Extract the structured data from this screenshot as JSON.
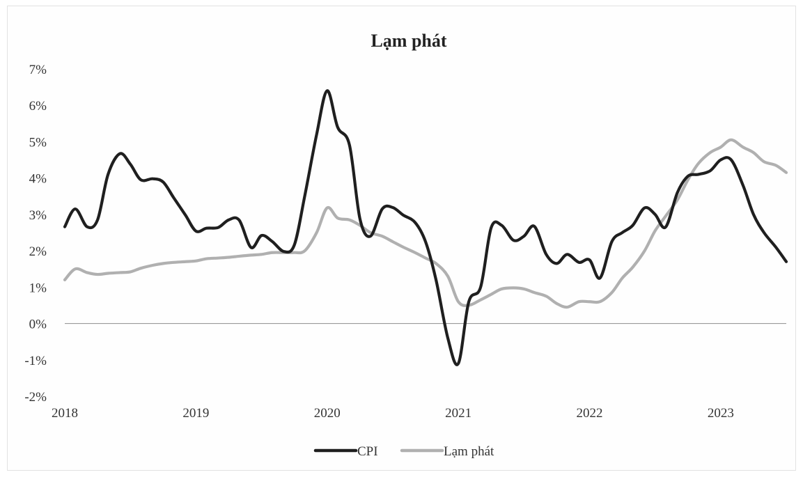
{
  "chart_data": {
    "type": "line",
    "title": "Lạm phát",
    "xlabel": "",
    "ylabel": "",
    "ylim": [
      -0.02,
      0.07
    ],
    "yticks": [
      "7%",
      "6%",
      "5%",
      "4%",
      "3%",
      "2%",
      "1%",
      "0%",
      "-1%",
      "-2%"
    ],
    "ytick_values": [
      0.07,
      0.06,
      0.05,
      0.04,
      0.03,
      0.02,
      0.01,
      0.0,
      -0.01,
      -0.02
    ],
    "xlim": [
      2018.0,
      2023.5
    ],
    "xticks": [
      "2018",
      "2019",
      "2020",
      "2021",
      "2022",
      "2023"
    ],
    "xtick_values": [
      2018,
      2019,
      2020,
      2021,
      2022,
      2023
    ],
    "grid": false,
    "legend_position": "bottom",
    "series": [
      {
        "name": "CPI",
        "color": "#1f1f1f",
        "x": [
          2018.0,
          2018.08,
          2018.17,
          2018.25,
          2018.33,
          2018.42,
          2018.5,
          2018.58,
          2018.67,
          2018.75,
          2018.83,
          2018.92,
          2019.0,
          2019.08,
          2019.17,
          2019.25,
          2019.33,
          2019.42,
          2019.5,
          2019.58,
          2019.67,
          2019.75,
          2019.83,
          2019.92,
          2020.0,
          2020.08,
          2020.17,
          2020.25,
          2020.33,
          2020.42,
          2020.5,
          2020.58,
          2020.67,
          2020.75,
          2020.83,
          2020.92,
          2021.0,
          2021.08,
          2021.17,
          2021.25,
          2021.33,
          2021.42,
          2021.5,
          2021.58,
          2021.67,
          2021.75,
          2021.83,
          2021.92,
          2022.0,
          2022.08,
          2022.17,
          2022.25,
          2022.33,
          2022.42,
          2022.5,
          2022.58,
          2022.67,
          2022.75,
          2022.83,
          2022.92,
          2023.0,
          2023.08,
          2023.17,
          2023.25,
          2023.33,
          2023.42,
          2023.5
        ],
        "values": [
          0.0266,
          0.0315,
          0.0266,
          0.0285,
          0.041,
          0.0467,
          0.0438,
          0.0395,
          0.0398,
          0.0389,
          0.0346,
          0.0298,
          0.0254,
          0.0262,
          0.0264,
          0.0285,
          0.0284,
          0.0209,
          0.0242,
          0.0226,
          0.0198,
          0.0216,
          0.0352,
          0.052,
          0.064,
          0.054,
          0.0491,
          0.0288,
          0.024,
          0.0315,
          0.0319,
          0.0298,
          0.0278,
          0.0225,
          0.012,
          -0.004,
          -0.011,
          0.006,
          0.01,
          0.0263,
          0.027,
          0.0229,
          0.024,
          0.0267,
          0.019,
          0.0165,
          0.019,
          0.0168,
          0.0175,
          0.0125,
          0.0225,
          0.025,
          0.027,
          0.0318,
          0.03,
          0.0265,
          0.036,
          0.0405,
          0.041,
          0.042,
          0.045,
          0.045,
          0.038,
          0.03,
          0.025,
          0.021,
          0.017
        ]
      },
      {
        "name": "Lạm phát",
        "color": "#b0b0b0",
        "x": [
          2018.0,
          2018.08,
          2018.17,
          2018.25,
          2018.33,
          2018.42,
          2018.5,
          2018.58,
          2018.67,
          2018.75,
          2018.83,
          2018.92,
          2019.0,
          2019.08,
          2019.17,
          2019.25,
          2019.33,
          2019.42,
          2019.5,
          2019.58,
          2019.67,
          2019.75,
          2019.83,
          2019.92,
          2020.0,
          2020.08,
          2020.17,
          2020.25,
          2020.33,
          2020.42,
          2020.5,
          2020.58,
          2020.67,
          2020.75,
          2020.83,
          2020.92,
          2021.0,
          2021.08,
          2021.17,
          2021.25,
          2021.33,
          2021.42,
          2021.5,
          2021.58,
          2021.67,
          2021.75,
          2021.83,
          2021.92,
          2022.0,
          2022.08,
          2022.17,
          2022.25,
          2022.33,
          2022.42,
          2022.5,
          2022.58,
          2022.67,
          2022.75,
          2022.83,
          2022.92,
          2023.0,
          2023.08,
          2023.17,
          2023.25,
          2023.33,
          2023.42,
          2023.5
        ],
        "values": [
          0.012,
          0.015,
          0.014,
          0.0135,
          0.0138,
          0.014,
          0.0142,
          0.0152,
          0.016,
          0.0165,
          0.0168,
          0.017,
          0.0172,
          0.0178,
          0.018,
          0.0182,
          0.0185,
          0.0188,
          0.019,
          0.0195,
          0.0195,
          0.0195,
          0.02,
          0.025,
          0.0318,
          0.029,
          0.0285,
          0.027,
          0.025,
          0.024,
          0.0225,
          0.021,
          0.0195,
          0.018,
          0.0165,
          0.013,
          0.006,
          0.005,
          0.0065,
          0.008,
          0.0095,
          0.0098,
          0.0095,
          0.0085,
          0.0075,
          0.0055,
          0.0045,
          0.006,
          0.006,
          0.006,
          0.0085,
          0.0125,
          0.0155,
          0.02,
          0.0255,
          0.0295,
          0.034,
          0.0395,
          0.044,
          0.047,
          0.0485,
          0.0505,
          0.0485,
          0.047,
          0.0445,
          0.0435,
          0.0415
        ]
      }
    ]
  }
}
